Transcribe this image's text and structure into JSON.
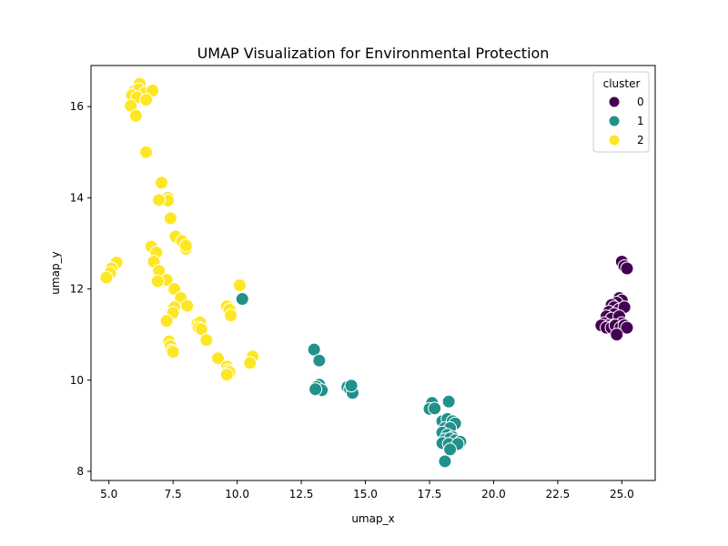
{
  "chart_data": {
    "type": "scatter",
    "title": "UMAP Visualization for Environmental Protection",
    "xlabel": "umap_x",
    "ylabel": "umap_y",
    "xlim": [
      4.3,
      26.3
    ],
    "ylim": [
      7.8,
      16.9
    ],
    "x_ticks": [
      5.0,
      7.5,
      10.0,
      12.5,
      15.0,
      17.5,
      20.0,
      22.5,
      25.0
    ],
    "x_tick_labels": [
      "5.0",
      "7.5",
      "10.0",
      "12.5",
      "15.0",
      "17.5",
      "20.0",
      "22.5",
      "25.0"
    ],
    "y_ticks": [
      8,
      10,
      12,
      14,
      16
    ],
    "y_tick_labels": [
      "8",
      "10",
      "12",
      "14",
      "16"
    ],
    "grid": false,
    "legend": {
      "title": "cluster",
      "placement": "top-right"
    },
    "series": [
      {
        "name": "0",
        "color": "#440154",
        "points": [
          [
            25.0,
            12.6
          ],
          [
            25.1,
            12.5
          ],
          [
            25.2,
            12.45
          ],
          [
            24.9,
            11.8
          ],
          [
            25.0,
            11.75
          ],
          [
            24.8,
            11.7
          ],
          [
            24.6,
            11.65
          ],
          [
            24.7,
            11.6
          ],
          [
            24.9,
            11.55
          ],
          [
            25.1,
            11.6
          ],
          [
            24.5,
            11.5
          ],
          [
            24.7,
            11.45
          ],
          [
            24.4,
            11.4
          ],
          [
            24.6,
            11.35
          ],
          [
            24.9,
            11.4
          ],
          [
            24.3,
            11.25
          ],
          [
            24.5,
            11.2
          ],
          [
            24.7,
            11.2
          ],
          [
            25.0,
            11.25
          ],
          [
            24.2,
            11.2
          ],
          [
            24.4,
            11.15
          ],
          [
            24.6,
            11.15
          ],
          [
            24.75,
            11.2
          ],
          [
            24.95,
            11.15
          ],
          [
            25.1,
            11.2
          ],
          [
            25.2,
            11.15
          ],
          [
            24.8,
            11.0
          ]
        ]
      },
      {
        "name": "1",
        "color": "#21918c",
        "points": [
          [
            10.2,
            11.78
          ],
          [
            13.0,
            10.67
          ],
          [
            13.2,
            10.43
          ],
          [
            13.2,
            9.9
          ],
          [
            13.1,
            9.85
          ],
          [
            13.3,
            9.78
          ],
          [
            13.05,
            9.8
          ],
          [
            14.3,
            9.85
          ],
          [
            14.4,
            9.8
          ],
          [
            14.5,
            9.72
          ],
          [
            14.45,
            9.88
          ],
          [
            17.6,
            9.5
          ],
          [
            18.25,
            9.53
          ],
          [
            17.5,
            9.37
          ],
          [
            17.7,
            9.38
          ],
          [
            18.0,
            9.1
          ],
          [
            18.2,
            9.15
          ],
          [
            18.4,
            9.1
          ],
          [
            18.5,
            9.05
          ],
          [
            18.1,
            8.95
          ],
          [
            18.3,
            8.95
          ],
          [
            18.0,
            8.85
          ],
          [
            18.2,
            8.8
          ],
          [
            18.4,
            8.75
          ],
          [
            18.1,
            8.7
          ],
          [
            18.3,
            8.72
          ],
          [
            18.5,
            8.68
          ],
          [
            18.0,
            8.62
          ],
          [
            18.25,
            8.6
          ],
          [
            18.7,
            8.65
          ],
          [
            18.6,
            8.6
          ],
          [
            18.3,
            8.48
          ],
          [
            18.1,
            8.22
          ]
        ]
      },
      {
        "name": "2",
        "color": "#fde725",
        "points": [
          [
            6.2,
            16.5
          ],
          [
            6.0,
            16.35
          ],
          [
            6.15,
            16.38
          ],
          [
            6.4,
            16.3
          ],
          [
            6.7,
            16.35
          ],
          [
            5.9,
            16.25
          ],
          [
            6.1,
            16.2
          ],
          [
            6.45,
            16.15
          ],
          [
            5.85,
            16.02
          ],
          [
            6.05,
            15.8
          ],
          [
            6.45,
            15.0
          ],
          [
            7.05,
            14.33
          ],
          [
            7.3,
            14.0
          ],
          [
            7.3,
            13.94
          ],
          [
            6.95,
            13.95
          ],
          [
            7.4,
            13.55
          ],
          [
            7.6,
            13.15
          ],
          [
            7.85,
            13.05
          ],
          [
            8.0,
            12.88
          ],
          [
            8.0,
            12.95
          ],
          [
            6.65,
            12.93
          ],
          [
            6.85,
            12.8
          ],
          [
            6.75,
            12.6
          ],
          [
            6.95,
            12.4
          ],
          [
            7.25,
            12.2
          ],
          [
            6.9,
            12.17
          ],
          [
            7.55,
            12.0
          ],
          [
            7.8,
            11.8
          ],
          [
            8.05,
            11.63
          ],
          [
            7.55,
            11.6
          ],
          [
            7.5,
            11.48
          ],
          [
            7.25,
            11.3
          ],
          [
            8.45,
            11.25
          ],
          [
            8.55,
            11.27
          ],
          [
            8.5,
            11.15
          ],
          [
            8.6,
            11.12
          ],
          [
            8.8,
            10.88
          ],
          [
            7.35,
            10.85
          ],
          [
            7.4,
            10.75
          ],
          [
            7.45,
            10.65
          ],
          [
            7.5,
            10.62
          ],
          [
            5.3,
            12.58
          ],
          [
            5.1,
            12.45
          ],
          [
            5.05,
            12.35
          ],
          [
            4.9,
            12.25
          ],
          [
            10.1,
            12.08
          ],
          [
            9.6,
            11.62
          ],
          [
            9.7,
            11.55
          ],
          [
            9.75,
            11.42
          ],
          [
            10.55,
            10.45
          ],
          [
            10.6,
            10.52
          ],
          [
            10.5,
            10.38
          ],
          [
            9.25,
            10.48
          ],
          [
            9.6,
            10.3
          ],
          [
            9.65,
            10.22
          ],
          [
            9.7,
            10.18
          ],
          [
            9.6,
            10.12
          ]
        ]
      }
    ]
  }
}
